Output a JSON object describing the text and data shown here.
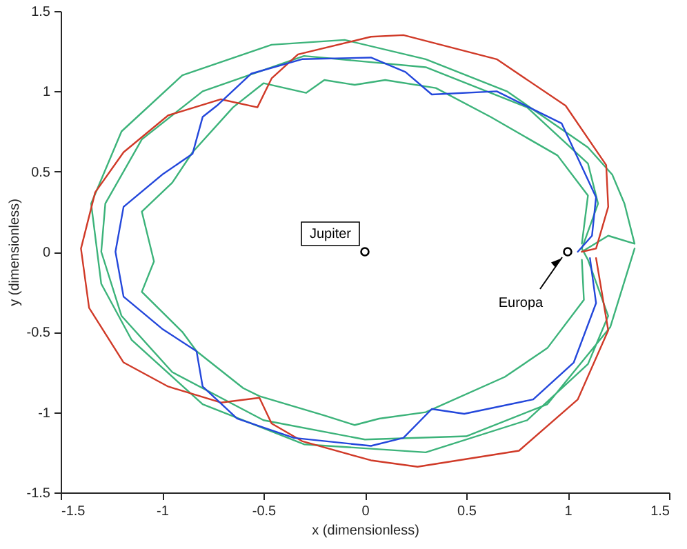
{
  "chart_data": {
    "type": "line",
    "xlabel": "x (dimensionless)",
    "ylabel": "y (dimensionless)",
    "xlim": [
      -1.5,
      1.5
    ],
    "ylim": [
      -1.5,
      1.5
    ],
    "xticks": [
      -1.5,
      -1,
      -0.5,
      0,
      0.5,
      1,
      1.5
    ],
    "yticks": [
      -1.5,
      -1,
      -0.5,
      0,
      0.5,
      1,
      1.5
    ],
    "grid": false,
    "series": [
      {
        "color": "#3cb37a",
        "x": [
          1.07,
          1.2,
          1.33,
          1.28,
          1.22,
          1.1,
          0.7,
          0.3,
          -0.1,
          -0.46,
          -0.9,
          -1.2,
          -1.35,
          -1.3,
          -1.15,
          -0.8,
          -0.3,
          0.3,
          0.8,
          1.1,
          1.2,
          1.1,
          1.07,
          1.15,
          1.1,
          0.8,
          0.3,
          -0.3,
          -0.8,
          -1.1,
          -1.28,
          -1.3,
          -1.2,
          -0.95,
          -0.5,
          0,
          0.5,
          0.9,
          1.21,
          1.33
        ],
        "values": [
          0,
          0.1,
          0.05,
          0.3,
          0.48,
          0.65,
          1.0,
          1.2,
          1.32,
          1.29,
          1.1,
          0.75,
          0.3,
          -0.2,
          -0.55,
          -0.95,
          -1.2,
          -1.25,
          -1.05,
          -0.7,
          -0.4,
          -0.05,
          0.02,
          0.3,
          0.55,
          0.9,
          1.15,
          1.22,
          1.0,
          0.7,
          0.3,
          0,
          -0.4,
          -0.75,
          -1.05,
          -1.17,
          -1.15,
          -0.95,
          -0.47,
          0.02
        ]
      },
      {
        "color": "#3cb37a",
        "x": [
          1.07,
          1.1,
          0.95,
          0.62,
          0.35,
          0.1,
          -0.05,
          -0.2,
          -0.29,
          -0.5,
          -0.65,
          -0.85,
          -0.95,
          -1.1,
          -1.04,
          -1.1,
          -0.9,
          -0.83,
          -0.6,
          -0.52,
          -0.2,
          -0.05,
          0.07,
          0.3,
          0.69,
          0.9,
          1.08,
          1.07
        ],
        "values": [
          0.05,
          0.35,
          0.6,
          0.84,
          1.02,
          1.07,
          1.04,
          1.07,
          0.99,
          1.05,
          0.9,
          0.62,
          0.43,
          0.25,
          -0.06,
          -0.25,
          -0.5,
          -0.62,
          -0.85,
          -0.9,
          -1.02,
          -1.08,
          -1.04,
          -1.0,
          -0.78,
          -0.6,
          -0.3,
          -0.05
        ]
      },
      {
        "color": "#d03a28",
        "x": [
          1.07,
          1.14,
          1.2,
          1.19,
          0.99,
          0.65,
          0.19,
          0.03,
          -0.33,
          -0.46,
          -0.53,
          -0.71,
          -0.97,
          -1.19,
          -1.33,
          -1.4,
          -1.36,
          -1.19,
          -0.97,
          -0.71,
          -0.52,
          -0.46,
          -0.31,
          0.03,
          0.26,
          0.76,
          1.05,
          1.2,
          1.14
        ],
        "values": [
          0,
          0.02,
          0.28,
          0.54,
          0.91,
          1.2,
          1.35,
          1.34,
          1.23,
          1.08,
          0.9,
          0.95,
          0.85,
          0.62,
          0.37,
          0.02,
          -0.35,
          -0.69,
          -0.84,
          -0.94,
          -0.91,
          -1.07,
          -1.18,
          -1.3,
          -1.34,
          -1.24,
          -0.92,
          -0.49,
          -0.04
        ]
      },
      {
        "color": "#2347db",
        "x": [
          1.05,
          1.12,
          1.14,
          0.97,
          0.65,
          0.33,
          0.2,
          0.03,
          -0.31,
          -0.56,
          -0.73,
          -0.8,
          -0.85,
          -1.0,
          -1.19,
          -1.23,
          -1.19,
          -1.0,
          -0.83,
          -0.8,
          -0.63,
          -0.35,
          0.03,
          0.19,
          0.33,
          0.49,
          0.83,
          1.03,
          1.14,
          1.11
        ],
        "values": [
          0,
          0.1,
          0.34,
          0.8,
          1.0,
          0.98,
          1.12,
          1.21,
          1.2,
          1.11,
          0.91,
          0.84,
          0.61,
          0.48,
          0.28,
          0,
          -0.28,
          -0.48,
          -0.62,
          -0.84,
          -1.04,
          -1.16,
          -1.21,
          -1.16,
          -0.98,
          -1.01,
          -0.92,
          -0.69,
          -0.32,
          -0.04
        ]
      },
      {
        "type": "scatter",
        "color": "#000000",
        "marker": "circle",
        "x": [
          0,
          1
        ],
        "values": [
          0,
          0
        ]
      }
    ],
    "annotations": [
      {
        "text": "Jupiter",
        "x": 0,
        "y": 0
      },
      {
        "text": "Europa",
        "x": 1,
        "y": 0
      }
    ]
  }
}
